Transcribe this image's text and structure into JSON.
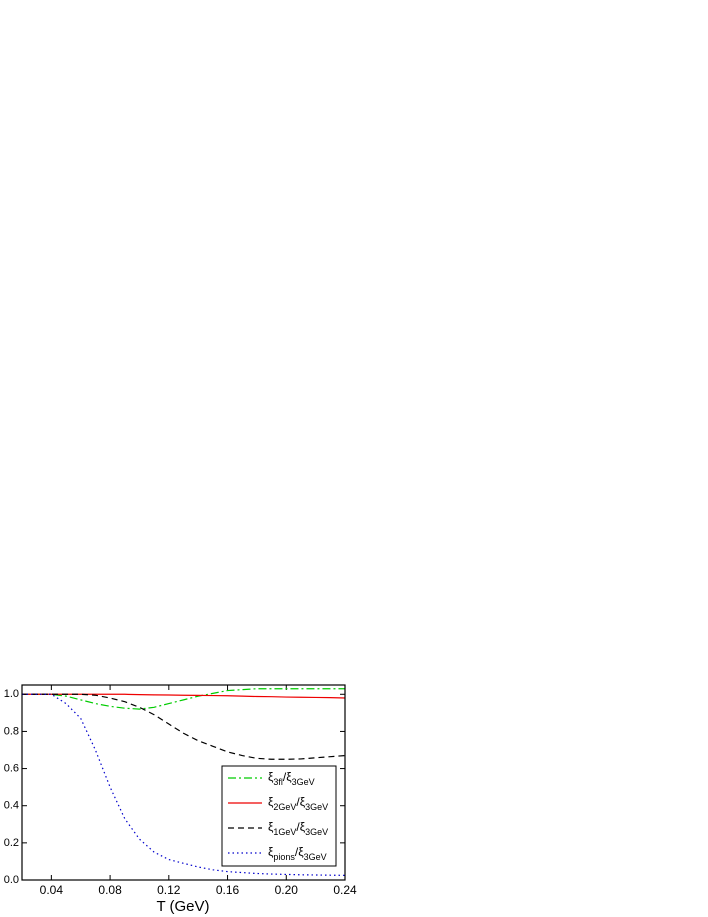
{
  "chart_data": {
    "type": "line",
    "x_label": "T (GeV)",
    "x": [
      0.02,
      0.03,
      0.04,
      0.05,
      0.06,
      0.07,
      0.08,
      0.09,
      0.1,
      0.11,
      0.12,
      0.13,
      0.14,
      0.15,
      0.16,
      0.17,
      0.18,
      0.19,
      0.2,
      0.21,
      0.22,
      0.23,
      0.24
    ],
    "series": [
      {
        "name": [
          {
            "text": "ξ"
          },
          {
            "text": "3fl",
            "sub": true
          },
          {
            "text": "/ξ"
          },
          {
            "text": "3GeV",
            "sub": true
          }
        ],
        "color": "#00cc00",
        "dash": "8,3,2,3",
        "values": [
          1,
          1,
          1,
          0.99,
          0.97,
          0.95,
          0.935,
          0.925,
          0.92,
          0.93,
          0.95,
          0.97,
          0.99,
          1.005,
          1.02,
          1.025,
          1.03,
          1.03,
          1.03,
          1.03,
          1.03,
          1.03,
          1.03
        ]
      },
      {
        "name": [
          {
            "text": "ξ"
          },
          {
            "text": "2GeV",
            "sub": true
          },
          {
            "text": "/ξ"
          },
          {
            "text": "3GeV",
            "sub": true
          }
        ],
        "color": "#ee0000",
        "dash": "none",
        "values": [
          1,
          1,
          1,
          1,
          1,
          1,
          1,
          1,
          0.998,
          0.997,
          0.996,
          0.995,
          0.994,
          0.993,
          0.992,
          0.99,
          0.988,
          0.987,
          0.985,
          0.984,
          0.983,
          0.982,
          0.98
        ]
      },
      {
        "name": [
          {
            "text": "ξ"
          },
          {
            "text": "1GeV",
            "sub": true
          },
          {
            "text": "/ξ"
          },
          {
            "text": "3GeV",
            "sub": true
          }
        ],
        "color": "#000000",
        "dash": "6,4",
        "values": [
          1,
          1,
          1,
          1,
          1,
          0.995,
          0.98,
          0.96,
          0.93,
          0.89,
          0.84,
          0.79,
          0.75,
          0.72,
          0.69,
          0.67,
          0.655,
          0.65,
          0.65,
          0.652,
          0.658,
          0.664,
          0.67
        ]
      },
      {
        "name": [
          {
            "text": "ξ"
          },
          {
            "text": "pions",
            "sub": true
          },
          {
            "text": "/ξ"
          },
          {
            "text": "3GeV",
            "sub": true
          }
        ],
        "color": "#0000cc",
        "dash": "1.5,3",
        "values": [
          1,
          1,
          1,
          0.95,
          0.87,
          0.7,
          0.5,
          0.33,
          0.22,
          0.15,
          0.11,
          0.09,
          0.07,
          0.055,
          0.045,
          0.04,
          0.035,
          0.032,
          0.03,
          0.028,
          0.027,
          0.026,
          0.025
        ]
      }
    ],
    "xlim": [
      0.02,
      0.24
    ],
    "ylim": [
      0,
      1.05
    ],
    "xticks": [
      0.04,
      0.08,
      0.12,
      0.16,
      {
        "value": 0.2,
        "label": "0.20"
      },
      0.24
    ],
    "yticks": [
      {
        "value": 0,
        "label": "0.0"
      },
      0.2,
      0.4,
      0.6,
      0.8,
      {
        "value": 1,
        "label": "1.0"
      }
    ],
    "legend": "lower-right"
  }
}
